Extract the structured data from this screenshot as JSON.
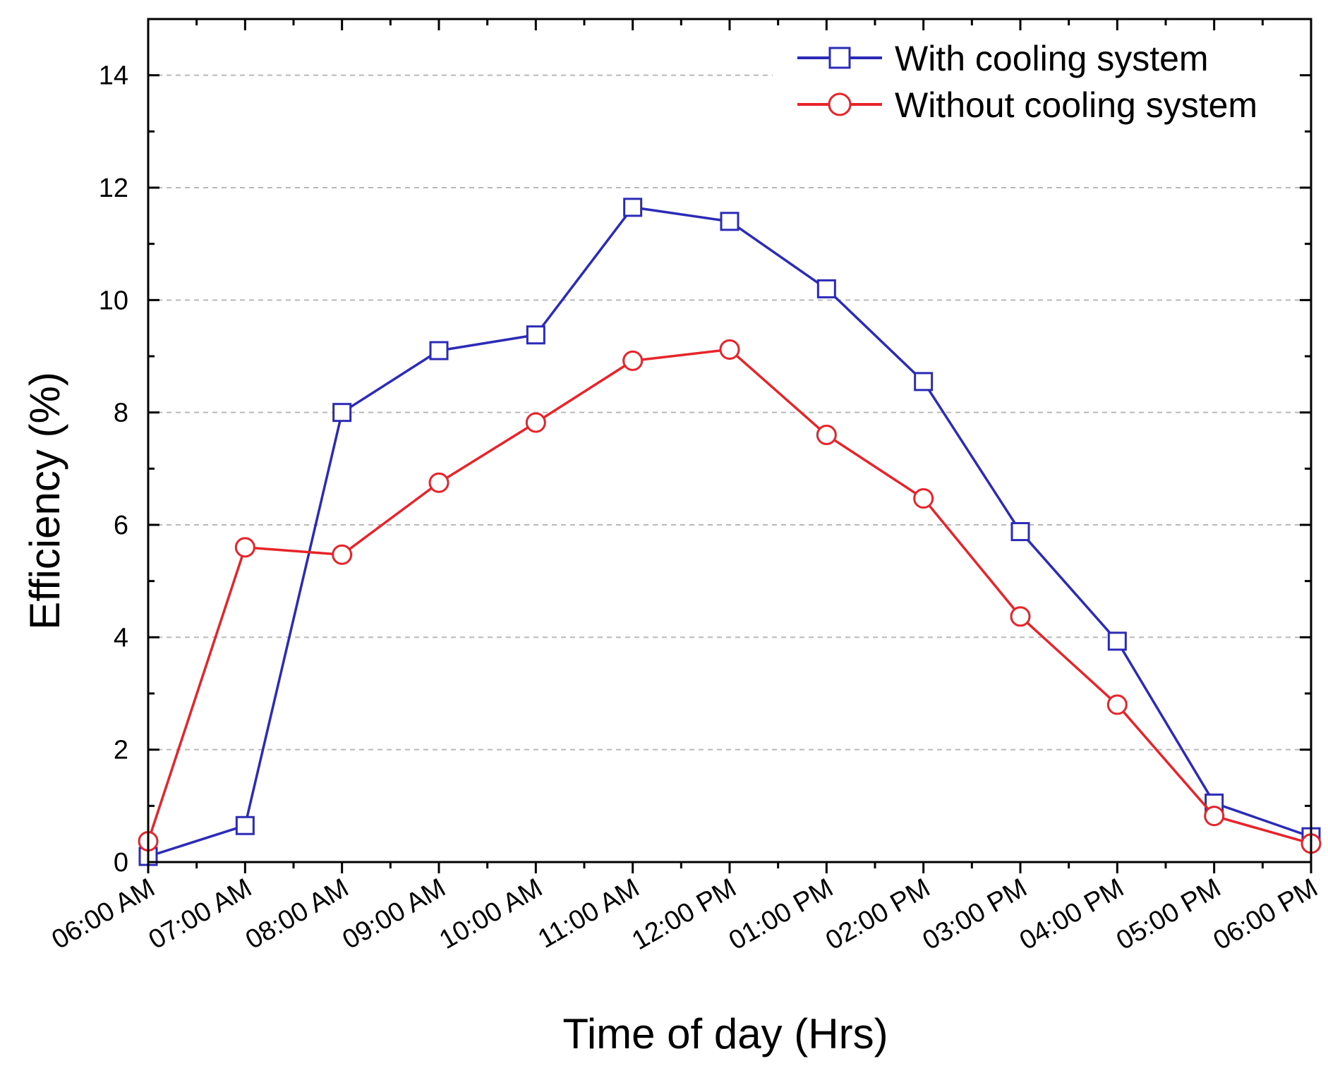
{
  "chart_data": {
    "type": "line",
    "title": "",
    "xlabel": "Time of day (Hrs)",
    "ylabel": "Efficiency (%)",
    "ylim": [
      0,
      15
    ],
    "yticks": [
      0,
      2,
      4,
      6,
      8,
      10,
      12,
      14
    ],
    "grid": "horizontal dashed",
    "legend_position": "top-right",
    "categories": [
      "06:00 AM",
      "07:00 AM",
      "08:00 AM",
      "09:00 AM",
      "10:00 AM",
      "11:00 AM",
      "12:00 PM",
      "01:00 PM",
      "02:00 PM",
      "03:00 PM",
      "04:00 PM",
      "05:00 PM",
      "06:00 PM"
    ],
    "series": [
      {
        "name": "With cooling system",
        "color": "#2b2bb8",
        "marker": "square",
        "values": [
          0.1,
          0.65,
          8.0,
          9.1,
          9.38,
          11.65,
          11.4,
          10.2,
          8.55,
          5.88,
          3.93,
          1.05,
          0.45
        ]
      },
      {
        "name": "Without cooling system",
        "color": "#e8242a",
        "marker": "circle",
        "values": [
          0.37,
          5.6,
          5.47,
          6.75,
          7.82,
          8.92,
          9.12,
          7.6,
          6.47,
          4.37,
          2.8,
          0.82,
          0.33
        ]
      }
    ]
  }
}
